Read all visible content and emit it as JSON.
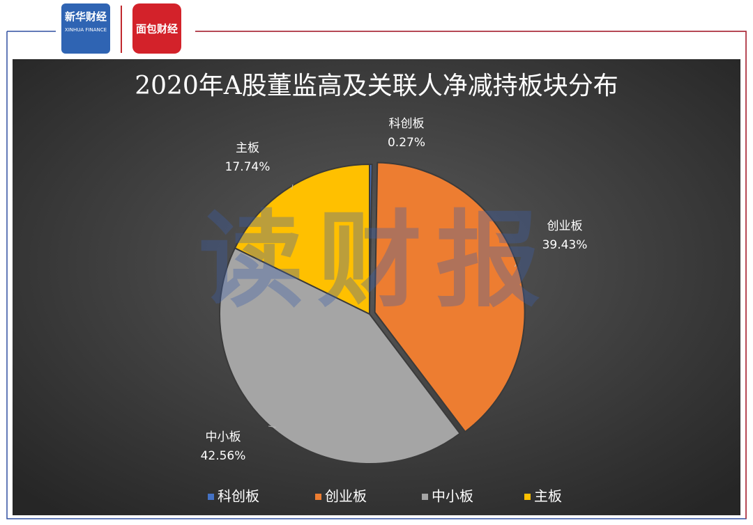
{
  "header": {
    "logo_1": "新华财经",
    "logo_1_sub": "XINHUA FINANCE",
    "logo_2": "面包财经"
  },
  "watermark": "读财报",
  "chart_data": {
    "type": "pie",
    "title": "2020年A股董监高及关联人净减持板块分布",
    "categories": [
      "科创板",
      "创业板",
      "中小板",
      "主板"
    ],
    "values": [
      0.27,
      39.43,
      42.56,
      17.74
    ],
    "value_labels": [
      "0.27%",
      "39.43%",
      "42.56%",
      "17.74%"
    ],
    "colors": [
      "#4472c4",
      "#ed7d31",
      "#a5a5a5",
      "#ffc000"
    ],
    "legend": "bottom"
  }
}
